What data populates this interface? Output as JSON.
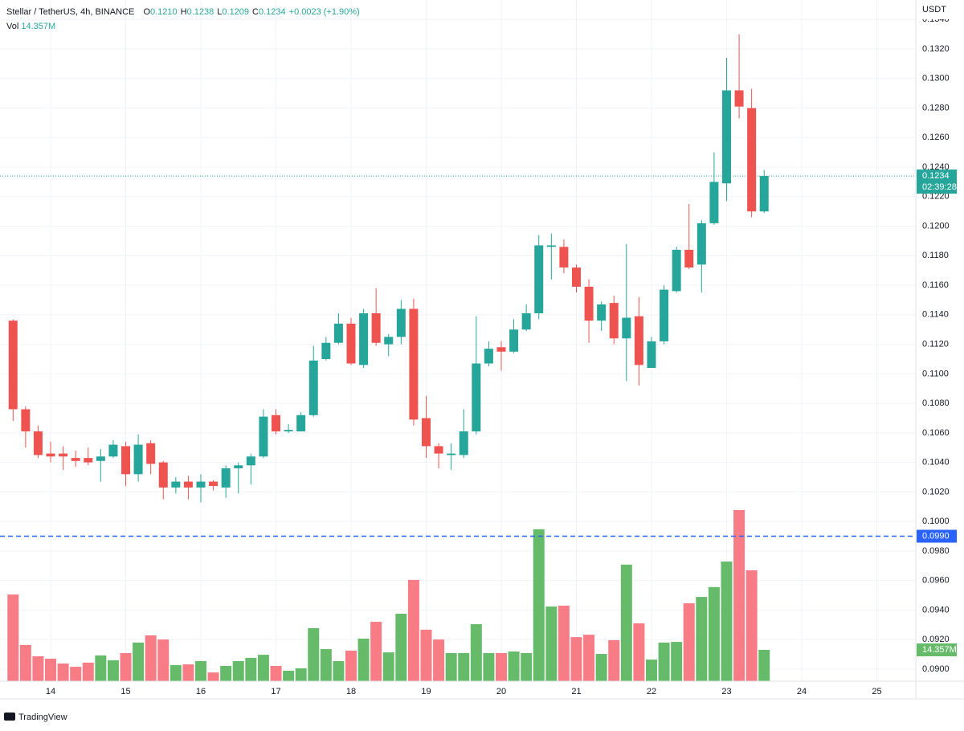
{
  "chart_data": {
    "type": "candlestick",
    "header": [
      {
        "label": "O",
        "value": "0.1210"
      },
      {
        "label": "H",
        "value": "0.1238"
      },
      {
        "label": "L",
        "value": "0.1209"
      },
      {
        "label": "C",
        "value": "0.1234"
      }
    ],
    "title": "Stellar / TetherUS, 4h, BINANCE",
    "change": "+0.0023 (+1.90%)",
    "vol_title": "Vol",
    "vol_label": "14.357M",
    "axis_unit": "USDT",
    "brand": "TradingView",
    "last_price_label": "0.1234",
    "countdown": "02:39:28",
    "alert_line": {
      "value": 0.099,
      "label": "0.0990"
    },
    "up_color": "#26a69a",
    "down_color": "#ef5350",
    "vol_up_color": "#66bb6a",
    "vol_down_color": "#f77c86",
    "x": [
      13.5,
      13.6667,
      13.8333,
      14,
      14.1667,
      14.3333,
      14.5,
      14.6667,
      14.8333,
      15,
      15.1667,
      15.3333,
      15.5,
      15.6667,
      15.8333,
      16,
      16.1667,
      16.3333,
      16.5,
      16.6667,
      16.8333,
      17,
      17.1667,
      17.3333,
      17.5,
      17.6667,
      17.8333,
      18,
      18.1667,
      18.3333,
      18.5,
      18.6667,
      18.8333,
      19,
      19.1667,
      19.3333,
      19.5,
      19.6667,
      19.8333,
      20,
      20.1667,
      20.3333,
      20.5,
      20.6667,
      20.8333,
      21,
      21.1667,
      21.3333,
      21.5,
      21.6667,
      21.8333,
      22,
      22.1667,
      22.3333,
      22.5,
      22.6667,
      22.8333,
      23,
      23.1667,
      23.3333,
      23.5
    ],
    "open": [
      0.1136,
      0.1076,
      0.1061,
      0.1046,
      0.1046,
      0.1043,
      0.1043,
      0.1041,
      0.1044,
      0.1051,
      0.1032,
      0.1053,
      0.104,
      0.1023,
      0.1027,
      0.1023,
      0.1027,
      0.1023,
      0.1036,
      0.1038,
      0.1044,
      0.1072,
      0.1061,
      0.1061,
      0.1072,
      0.111,
      0.1121,
      0.1134,
      0.1106,
      0.1141,
      0.112,
      0.1125,
      0.1144,
      0.107,
      0.1051,
      0.1045,
      0.1045,
      0.1061,
      0.1107,
      0.1118,
      0.1115,
      0.113,
      0.1141,
      0.1186,
      0.1186,
      0.1172,
      0.1159,
      0.1136,
      0.1148,
      0.1124,
      0.1139,
      0.1104,
      0.1122,
      0.1156,
      0.1184,
      0.1174,
      0.1202,
      0.1229,
      0.1292,
      0.128,
      0.121
    ],
    "high": [
      0.1137,
      0.1078,
      0.1065,
      0.1054,
      0.1051,
      0.1048,
      0.105,
      0.1049,
      0.1055,
      0.1054,
      0.1059,
      0.1055,
      0.1041,
      0.103,
      0.1031,
      0.1032,
      0.1028,
      0.1038,
      0.104,
      0.1046,
      0.1076,
      0.1076,
      0.1066,
      0.1074,
      0.1119,
      0.1125,
      0.1141,
      0.1138,
      0.1144,
      0.1158,
      0.1127,
      0.115,
      0.1151,
      0.1085,
      0.1053,
      0.1053,
      0.1076,
      0.1139,
      0.1122,
      0.1122,
      0.1137,
      0.1147,
      0.1194,
      0.1195,
      0.1191,
      0.1174,
      0.1164,
      0.1149,
      0.1153,
      0.1188,
      0.1152,
      0.1125,
      0.116,
      0.1186,
      0.1215,
      0.1204,
      0.125,
      0.1314,
      0.133,
      0.1293,
      0.1238
    ],
    "low": [
      0.1068,
      0.105,
      0.1043,
      0.104,
      0.1035,
      0.1037,
      0.1038,
      0.1027,
      0.1043,
      0.1024,
      0.1027,
      0.1032,
      0.1015,
      0.1019,
      0.1015,
      0.1013,
      0.1021,
      0.1016,
      0.1019,
      0.1025,
      0.1043,
      0.1059,
      0.106,
      0.1061,
      0.1071,
      0.1109,
      0.112,
      0.1106,
      0.1104,
      0.1119,
      0.1112,
      0.112,
      0.1065,
      0.1043,
      0.1036,
      0.1035,
      0.1043,
      0.1059,
      0.1105,
      0.1102,
      0.1114,
      0.1129,
      0.1137,
      0.1164,
      0.1168,
      0.1155,
      0.1121,
      0.1129,
      0.112,
      0.1095,
      0.1092,
      0.1104,
      0.112,
      0.1155,
      0.1171,
      0.1155,
      0.1201,
      0.1217,
      0.1273,
      0.1206,
      0.1209
    ],
    "close": [
      0.1076,
      0.1061,
      0.1045,
      0.1044,
      0.1044,
      0.1041,
      0.104,
      0.1044,
      0.1052,
      0.1032,
      0.1052,
      0.1039,
      0.1023,
      0.1027,
      0.1023,
      0.1027,
      0.1024,
      0.1036,
      0.1038,
      0.1044,
      0.1071,
      0.1061,
      0.1062,
      0.1072,
      0.1109,
      0.1121,
      0.1134,
      0.1107,
      0.1141,
      0.1121,
      0.1125,
      0.1144,
      0.1069,
      0.1051,
      0.1046,
      0.1046,
      0.1061,
      0.1107,
      0.1117,
      0.1115,
      0.113,
      0.1141,
      0.1187,
      0.1187,
      0.1172,
      0.1159,
      0.1136,
      0.1147,
      0.1124,
      0.1138,
      0.1106,
      0.1122,
      0.1157,
      0.1184,
      0.1172,
      0.1202,
      0.123,
      0.1292,
      0.1281,
      0.121,
      0.1234
    ],
    "volume": [
      39.7,
      16.6,
      11.4,
      10.3,
      8.1,
      6.6,
      8.5,
      11.8,
      9.6,
      12.9,
      17.7,
      21.0,
      19.1,
      7.4,
      7.7,
      9.2,
      4.0,
      7.0,
      9.2,
      10.7,
      12.1,
      7.0,
      4.8,
      5.9,
      24.3,
      14.7,
      9.2,
      14.0,
      19.5,
      27.2,
      13.2,
      30.9,
      46.4,
      23.6,
      19.1,
      12.9,
      12.9,
      26.1,
      12.9,
      12.9,
      13.6,
      12.9,
      69.6,
      34.2,
      34.6,
      20.2,
      21.3,
      12.5,
      18.8,
      53.4,
      26.5,
      9.9,
      17.7,
      18.0,
      35.7,
      38.6,
      43.1,
      54.8,
      78.4,
      50.8,
      14.357
    ],
    "xlim": [
      13.326,
      25.519
    ],
    "xticks": [
      14,
      15,
      16,
      17,
      18,
      19,
      20,
      21,
      22,
      23,
      24,
      25
    ],
    "ylim": [
      0.08918,
      0.13532
    ],
    "yticks": [
      {
        "value": 0.09,
        "label": "0.0900"
      },
      {
        "value": 0.092,
        "label": "0.0920"
      },
      {
        "value": 0.094,
        "label": "0.0940"
      },
      {
        "value": 0.096,
        "label": "0.0960"
      },
      {
        "value": 0.098,
        "label": "0.0980"
      },
      {
        "value": 0.1,
        "label": "0.1000"
      },
      {
        "value": 0.102,
        "label": "0.1020"
      },
      {
        "value": 0.104,
        "label": "0.1040"
      },
      {
        "value": 0.106,
        "label": "0.1060"
      },
      {
        "value": 0.108,
        "label": "0.1080"
      },
      {
        "value": 0.11,
        "label": "0.1100"
      },
      {
        "value": 0.112,
        "label": "0.1120"
      },
      {
        "value": 0.114,
        "label": "0.1140"
      },
      {
        "value": 0.116,
        "label": "0.1160"
      },
      {
        "value": 0.118,
        "label": "0.1180"
      },
      {
        "value": 0.12,
        "label": "0.1200"
      },
      {
        "value": 0.122,
        "label": "0.1220"
      },
      {
        "value": 0.124,
        "label": "0.1240"
      },
      {
        "value": 0.126,
        "label": "0.1260"
      },
      {
        "value": 0.128,
        "label": "0.1280"
      },
      {
        "value": 0.13,
        "label": "0.1300"
      },
      {
        "value": 0.132,
        "label": "0.1320"
      },
      {
        "value": 0.134,
        "label": "0.1340"
      }
    ],
    "y2lim": [
      0,
      312
    ],
    "grid": true
  }
}
